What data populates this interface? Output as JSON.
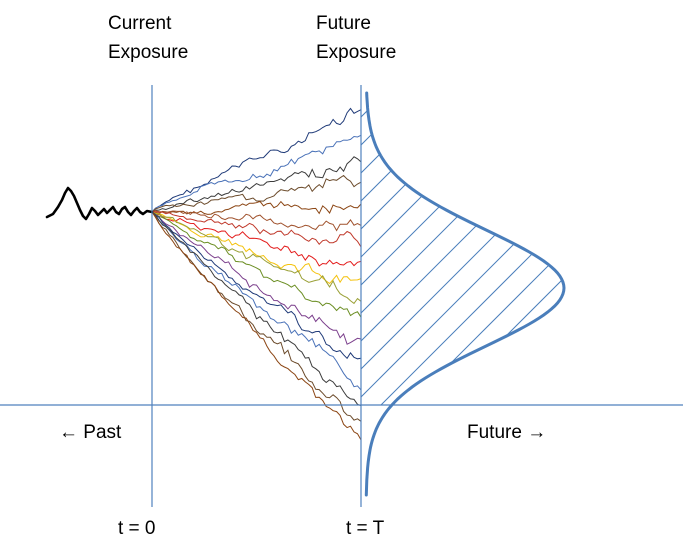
{
  "labels": {
    "current_exposure": [
      "Current",
      "Exposure"
    ],
    "future_exposure": [
      "Future",
      "Exposure"
    ],
    "past": "← Past",
    "future": "Future →",
    "t0": "t = 0",
    "tT": "t = T"
  },
  "colors": {
    "axis": "#4f81bd",
    "curve": "#4a7ebb",
    "hatch": "#4a7ebb",
    "history": "#000000",
    "paths": [
      "#1f3a78",
      "#4a72b8",
      "#3b3b3b",
      "#6b4a2a",
      "#8b4513",
      "#a0522d",
      "#c0392b",
      "#e31c1c",
      "#f4c20d",
      "#9aa037",
      "#6b8e23",
      "#7b3f8c"
    ]
  }
}
